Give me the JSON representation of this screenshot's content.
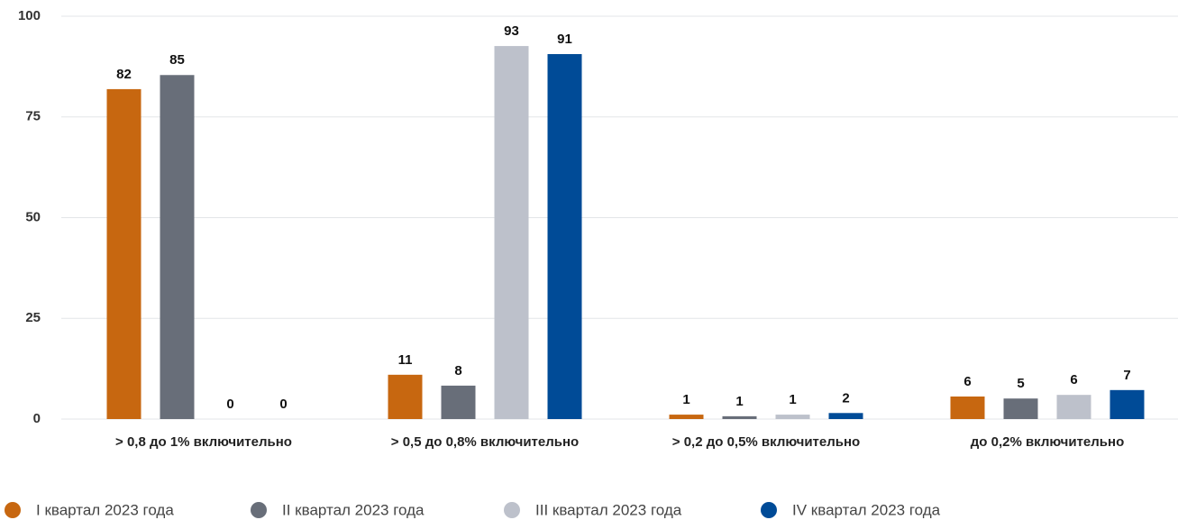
{
  "chart_data": {
    "type": "bar",
    "categories": [
      "> 0,8 до 1% включительно",
      "> 0,5 до 0,8% включительно",
      "> 0,2 до 0,5% включительно",
      "до 0,2% включительно"
    ],
    "series": [
      {
        "name": "I квартал 2023 года",
        "color": "#c76710",
        "values": [
          81.9,
          11,
          1.1,
          5.6
        ],
        "value_labels": [
          "82",
          "11",
          "1",
          "6"
        ]
      },
      {
        "name": "II квартал 2023 года",
        "color": "#686e79",
        "values": [
          85.4,
          8.3,
          0.7,
          5.1
        ],
        "value_labels": [
          "85",
          "8",
          "1",
          "5"
        ]
      },
      {
        "name": "III квартал 2023 года",
        "color": "#bdc1cb",
        "values": [
          0,
          92.6,
          1.1,
          6.0
        ],
        "value_labels": [
          "0",
          "93",
          "1",
          "6"
        ]
      },
      {
        "name": "IV квартал 2023 года",
        "color": "#004b97",
        "values": [
          0,
          90.6,
          1.5,
          7.2
        ],
        "value_labels": [
          "0",
          "91",
          "2",
          "7"
        ]
      }
    ],
    "ylim": [
      0,
      100
    ],
    "yticks": [
      0,
      25,
      50,
      75,
      100
    ],
    "grid": true,
    "legend": "bottom"
  }
}
